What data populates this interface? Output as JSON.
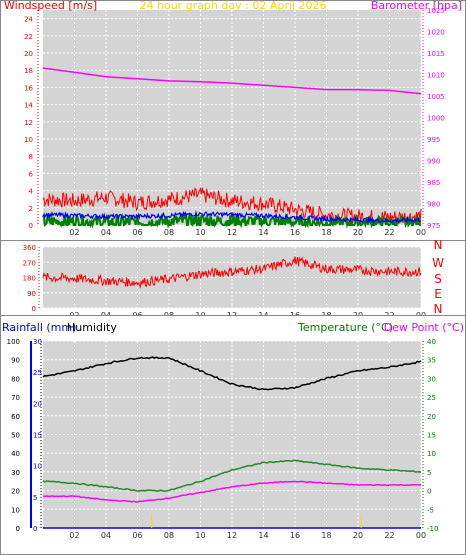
{
  "header": {
    "left_title": "Windspeed [m/s]",
    "center_title": "24 hour graph day : 02 April 2026",
    "right_title": "Barometer [hpa]"
  },
  "direction_letters": [
    "N",
    "W",
    "S",
    "E",
    "N"
  ],
  "bottom_header": {
    "rainfall": "Rainfall (mm)",
    "humidity": "Humidity",
    "temperature": "Temperature (°C)",
    "dewpoint": "Dew Point (°C)"
  },
  "colors": {
    "windspeed": "#ff0000",
    "gust_avg": "#0000ff",
    "wind_low": "#008000",
    "barometer": "#ff00ff",
    "direction": "#ff0000",
    "humidity": "#000000",
    "temperature": "#228b22",
    "dewpoint": "#ff00ff",
    "rainfall": "#0000ff",
    "center_title": "#ffd700",
    "plot_bg": "#d4d4d4"
  },
  "chart_data": [
    {
      "type": "line",
      "name": "wind-barometer",
      "title": "24 hour graph day : 02 April 2026",
      "ylabel": "Windspeed [m/s]",
      "y2label": "Barometer [hpa]",
      "ylim": [
        0,
        25
      ],
      "y2lim": [
        975,
        1025
      ],
      "yticks": [
        0,
        2,
        4,
        6,
        8,
        10,
        12,
        14,
        16,
        18,
        20,
        22,
        24
      ],
      "y2ticks": [
        975,
        980,
        985,
        990,
        995,
        1000,
        1005,
        1010,
        1015,
        1020,
        1025
      ],
      "xlabels": [
        "02",
        "04",
        "06",
        "08",
        "10",
        "12",
        "14",
        "16",
        "18",
        "20",
        "22",
        "00"
      ],
      "x": [
        0,
        2,
        4,
        6,
        8,
        10,
        12,
        14,
        16,
        18,
        20,
        22,
        24
      ],
      "series": [
        {
          "values": [
            3,
            2.8,
            3.2,
            2.6,
            3,
            3.5,
            2.8,
            2.5,
            1.8,
            1.2,
            1,
            0.9,
            1
          ]
        },
        {
          "values": [
            1.2,
            1.1,
            1,
            1,
            1.1,
            1.3,
            1.2,
            1.1,
            0.9,
            0.7,
            0.6,
            0.5,
            0.6
          ]
        },
        {
          "values": [
            0.4,
            0.4,
            0.3,
            0.3,
            0.4,
            0.5,
            0.4,
            0.4,
            0.3,
            0.2,
            0.2,
            0.2,
            0.2
          ]
        },
        {
          "values": [
            1011.5,
            1010.5,
            1009.5,
            1009,
            1008.5,
            1008.3,
            1008,
            1007.5,
            1007,
            1006.5,
            1006.5,
            1006.3,
            1005.5
          ]
        }
      ]
    },
    {
      "type": "line",
      "name": "wind-direction",
      "ylim": [
        0,
        360
      ],
      "yticks": [
        0,
        90,
        180,
        270,
        360
      ],
      "xlabels": [
        "02",
        "04",
        "06",
        "08",
        "10",
        "12",
        "14",
        "16",
        "18",
        "20",
        "22",
        "00"
      ],
      "x": [
        0,
        2,
        4,
        6,
        8,
        10,
        12,
        14,
        16,
        18,
        20,
        22,
        24
      ],
      "series": [
        {
          "values": [
            180,
            175,
            160,
            150,
            170,
            200,
            215,
            230,
            280,
            230,
            225,
            215,
            215
          ]
        }
      ]
    },
    {
      "type": "line",
      "name": "temperature-humidity",
      "ylabel": "Humidity",
      "ylim": [
        0,
        100
      ],
      "yticks": [
        0,
        10,
        20,
        30,
        40,
        50,
        60,
        70,
        80,
        90,
        100
      ],
      "y_rain_lim": [
        0,
        30
      ],
      "y_rain_ticks": [
        0,
        5,
        10,
        15,
        20,
        25,
        30
      ],
      "y2label": "Temperature (°C)",
      "y2lim": [
        -10,
        40
      ],
      "y2ticks": [
        -10,
        -5,
        0,
        5,
        10,
        15,
        20,
        25,
        30,
        35,
        40
      ],
      "xlabels": [
        "02",
        "04",
        "06",
        "08",
        "10",
        "12",
        "14",
        "16",
        "18",
        "20",
        "22",
        "00"
      ],
      "x": [
        0,
        2,
        4,
        6,
        8,
        10,
        12,
        14,
        16,
        18,
        20,
        22,
        24
      ],
      "series": [
        {
          "values": [
            81,
            84,
            88,
            91,
            91,
            84,
            77,
            74,
            75,
            80,
            84,
            86,
            89
          ]
        },
        {
          "values": [
            2.5,
            2,
            1,
            0,
            0,
            2.5,
            5.5,
            7.5,
            8,
            7,
            6,
            5.5,
            5
          ]
        },
        {
          "values": [
            -1.5,
            -1.5,
            -2.5,
            -3,
            -2,
            -0.5,
            1,
            2,
            2.5,
            2,
            1.5,
            1.5,
            1.5
          ]
        },
        {
          "values": [
            0,
            0,
            0,
            0,
            0,
            0,
            0,
            0,
            0,
            0,
            0,
            0,
            0
          ]
        }
      ]
    }
  ]
}
